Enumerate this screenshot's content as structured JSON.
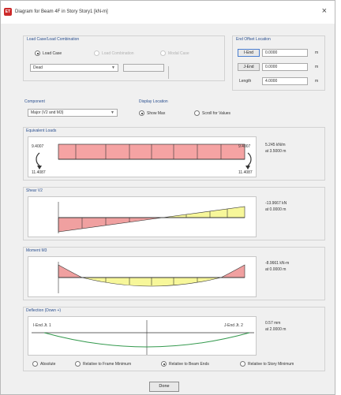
{
  "window": {
    "title": "Diagram for Beam 4F in Story Story1 [kN-m]",
    "icon_label": "ET",
    "close_icon": "×"
  },
  "load_case": {
    "group_label": "Load Case/Load Combination",
    "options": [
      "Load Case",
      "Load Combination",
      "Modal Case"
    ],
    "selected": "Load Case",
    "value": "Dead"
  },
  "end_offset": {
    "group_label": "End Offset Location",
    "rows": [
      {
        "button": "I-End",
        "value": "0.0000",
        "unit": "m"
      },
      {
        "button": "J-End",
        "value": "0.0000",
        "unit": "m"
      },
      {
        "button": "Length",
        "value": "4.0000",
        "unit": "m"
      }
    ]
  },
  "component": {
    "label": "Component",
    "value": "Major (V2 and M3)"
  },
  "display_location": {
    "label": "Display Location",
    "options": [
      "Show Max",
      "Scroll for Values"
    ],
    "selected": "Show Max"
  },
  "equivalent_loads": {
    "label": "Equivalent Loads",
    "left_value": "9.4007",
    "left_value2": "11.4087",
    "right_value": "9.4007",
    "right_value2": "11.4087",
    "result_value": "5.245 kN/m",
    "result_location": "at 3.5000 m"
  },
  "shear": {
    "label": "Shear V2",
    "result_value": "-13.9667 kN",
    "result_location": "at 0.0000 m"
  },
  "moment": {
    "label": "Moment M3",
    "result_value": "-8.9661 kN-m",
    "result_location": "at 0.0000 m"
  },
  "deflection": {
    "label": "Deflection (Down +)",
    "left_label": "I-End Jt. 1",
    "right_label": "J-End Jt. 2",
    "result_value": "0.57 mm",
    "result_location": "at 2.0000 m",
    "options": [
      "Absolute",
      "Relative to Frame Minimum",
      "Relative to Beam Ends",
      "Relative to Story Minimum"
    ],
    "selected": "Relative to Beam Ends"
  },
  "done_label": "Done",
  "colors": {
    "load_fill": "#f5a3a3",
    "positive_fill": "#f7f79a",
    "negative_fill": "#f0a0a0",
    "outline": "#333333",
    "deflection_line": "#33994d"
  }
}
